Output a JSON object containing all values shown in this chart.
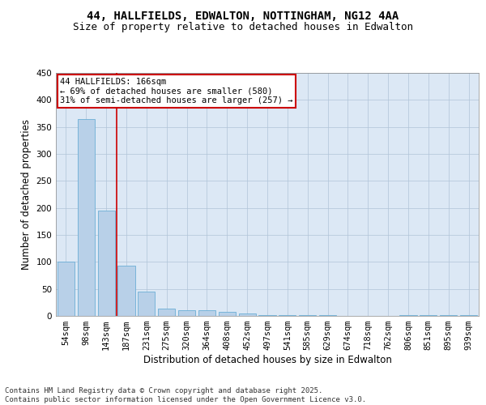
{
  "title": "44, HALLFIELDS, EDWALTON, NOTTINGHAM, NG12 4AA",
  "subtitle": "Size of property relative to detached houses in Edwalton",
  "xlabel": "Distribution of detached houses by size in Edwalton",
  "ylabel": "Number of detached properties",
  "footer": "Contains HM Land Registry data © Crown copyright and database right 2025.\nContains public sector information licensed under the Open Government Licence v3.0.",
  "categories": [
    "54sqm",
    "98sqm",
    "143sqm",
    "187sqm",
    "231sqm",
    "275sqm",
    "320sqm",
    "364sqm",
    "408sqm",
    "452sqm",
    "497sqm",
    "541sqm",
    "585sqm",
    "629sqm",
    "674sqm",
    "718sqm",
    "762sqm",
    "806sqm",
    "851sqm",
    "895sqm",
    "939sqm"
  ],
  "values": [
    100,
    365,
    195,
    93,
    45,
    13,
    11,
    10,
    7,
    5,
    2,
    2,
    2,
    1,
    0,
    0,
    0,
    1,
    1,
    1,
    1
  ],
  "bar_color": "#b8d0e8",
  "bar_edge_color": "#6baed6",
  "red_line_x": 2.5,
  "red_line_color": "#cc0000",
  "annotation_text": "44 HALLFIELDS: 166sqm\n← 69% of detached houses are smaller (580)\n31% of semi-detached houses are larger (257) →",
  "annotation_box_color": "#ffffff",
  "annotation_border_color": "#cc0000",
  "ylim": [
    0,
    450
  ],
  "yticks": [
    0,
    50,
    100,
    150,
    200,
    250,
    300,
    350,
    400,
    450
  ],
  "ax_bg_color": "#dce8f5",
  "background_color": "#ffffff",
  "grid_color": "#b0c4d8",
  "title_fontsize": 10,
  "subtitle_fontsize": 9,
  "axis_label_fontsize": 8.5,
  "tick_fontsize": 7.5,
  "annotation_fontsize": 7.5,
  "footer_fontsize": 6.5
}
